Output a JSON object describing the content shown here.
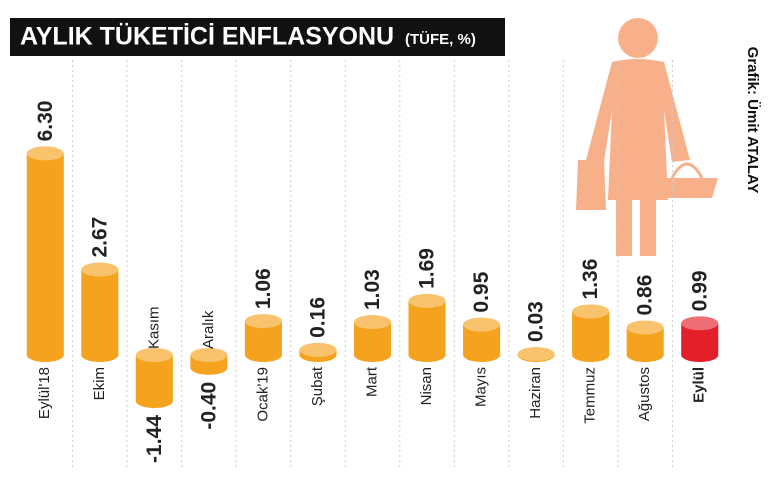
{
  "chart_data": {
    "type": "bar",
    "title": "AYLIK TÜKETİCİ ENFLASYONU",
    "subtitle": "(TÜFE, %)",
    "credit": "Grafik: Ümit ATALAY",
    "categories": [
      "Eylül'18",
      "Ekim",
      "Kasım",
      "Aralık",
      "Ocak'19",
      "Şubat",
      "Mart",
      "Nisan",
      "Mayıs",
      "Haziran",
      "Temmuz",
      "Ağustos",
      "Eylül"
    ],
    "values": [
      6.3,
      2.67,
      -1.44,
      -0.4,
      1.06,
      0.16,
      1.03,
      1.69,
      0.95,
      0.03,
      1.36,
      0.86,
      0.99
    ],
    "value_labels": [
      "6.30",
      "2.67",
      "-1.44",
      "-0.40",
      "1.06",
      "0.16",
      "1.03",
      "1.69",
      "0.95",
      "0.03",
      "1.36",
      "0.86",
      "0.99"
    ],
    "colors": [
      "#f5a31e",
      "#f5a31e",
      "#f5a31e",
      "#f5a31e",
      "#f5a31e",
      "#f5a31e",
      "#f5a31e",
      "#f5a31e",
      "#f5a31e",
      "#f5a31e",
      "#f5a31e",
      "#f5a31e",
      "#e3202a"
    ],
    "ylim": [
      -2.5,
      7
    ]
  }
}
